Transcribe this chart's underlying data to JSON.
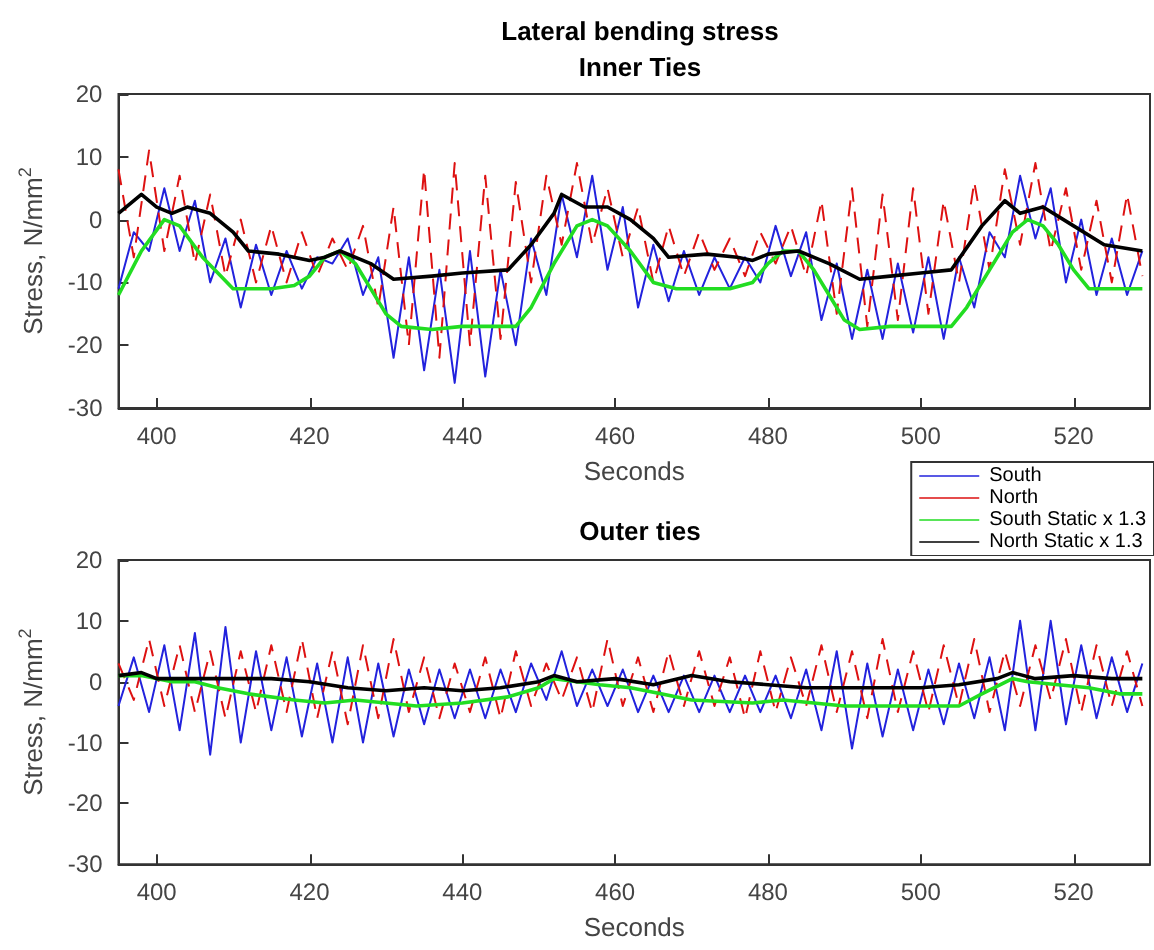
{
  "chart_data": [
    {
      "type": "line",
      "title": "Lateral bending stress",
      "subtitle": "Inner Ties",
      "xlabel": "Seconds",
      "ylabel": "Stress, N/mm$^{2}$",
      "xlim": [
        395,
        530
      ],
      "xticks": [
        400,
        420,
        440,
        460,
        480,
        500,
        520
      ],
      "ylim": [
        -30,
        20
      ],
      "yticks": [
        -30,
        -20,
        -10,
        0,
        10,
        20
      ],
      "legend": "bottom right",
      "marker": "none",
      "x": [
        395,
        397,
        399,
        401,
        403,
        405,
        407,
        409,
        411,
        413,
        415,
        417,
        419,
        421,
        423,
        425,
        427,
        429,
        431,
        433,
        435,
        437,
        439,
        441,
        443,
        445,
        447,
        449,
        451,
        453,
        455,
        457,
        459,
        461,
        463,
        465,
        467,
        469,
        471,
        473,
        475,
        477,
        479,
        481,
        483,
        485,
        487,
        489,
        491,
        493,
        495,
        497,
        499,
        501,
        503,
        505,
        507,
        509,
        511,
        513,
        515,
        517,
        519,
        521,
        523,
        525,
        527,
        529
      ],
      "series": [
        {
          "name": "South",
          "color": "#2222dd",
          "line_style": "solid",
          "values": [
            -11,
            -2,
            -5,
            5,
            -5,
            3,
            -10,
            -3,
            -14,
            -4,
            -12,
            -5,
            -11,
            -6,
            -7,
            -3,
            -12,
            -6,
            -22,
            -6,
            -24,
            -8,
            -26,
            -5,
            -25,
            -8,
            -20,
            -3,
            -12,
            4,
            -6,
            7,
            -8,
            2,
            -14,
            -4,
            -13,
            -5,
            -12,
            -6,
            -11,
            -6,
            -10,
            -1,
            -9,
            -2,
            -16,
            -7,
            -19,
            -8,
            -19,
            -7,
            -18,
            -6,
            -19,
            -6,
            -14,
            -2,
            -6,
            7,
            -3,
            5,
            -10,
            0,
            -12,
            -3,
            -12,
            -5
          ]
        },
        {
          "name": "North",
          "color": "#dd1111",
          "line_style": "dashed",
          "values": [
            8,
            -6,
            11,
            -5,
            7,
            -7,
            4,
            -9,
            0,
            -10,
            -1,
            -10,
            -2,
            -9,
            -3,
            -8,
            -1,
            -14,
            2,
            -20,
            8,
            -22,
            9,
            -20,
            7,
            -19,
            6,
            -10,
            7,
            -4,
            9,
            -4,
            5,
            -6,
            2,
            -10,
            -1,
            -9,
            -2,
            -8,
            -3,
            -9,
            -2,
            -7,
            -1,
            -9,
            3,
            -15,
            5,
            -17,
            4,
            -16,
            5,
            -15,
            3,
            -10,
            6,
            -8,
            8,
            -4,
            9,
            -5,
            5,
            -8,
            3,
            -10,
            4,
            -9
          ]
        },
        {
          "name": "South Static x 1.3",
          "color": "#22dd22",
          "line_style": "solid",
          "x": [
            395,
            398,
            401,
            403,
            406,
            410,
            415,
            418,
            420,
            422,
            424,
            426,
            428,
            430,
            432,
            436,
            440,
            444,
            447,
            449,
            452,
            455,
            457,
            459,
            462,
            465,
            468,
            475,
            478,
            480,
            482,
            484,
            486,
            488,
            490,
            492,
            496,
            500,
            504,
            506,
            509,
            512,
            514,
            516,
            518,
            520,
            522,
            525,
            529
          ],
          "values": [
            -12,
            -5,
            0,
            -1,
            -6,
            -11,
            -11,
            -10.5,
            -9,
            -6,
            -5,
            -7,
            -11,
            -15,
            -17,
            -17.5,
            -17,
            -17,
            -17,
            -14,
            -7,
            -1,
            0,
            -1,
            -5,
            -10,
            -11,
            -11,
            -10,
            -7,
            -5,
            -5,
            -8,
            -12,
            -16,
            -17.5,
            -17,
            -17,
            -17,
            -14,
            -8,
            -2,
            0,
            -1,
            -4,
            -8,
            -11,
            -11,
            -11
          ]
        },
        {
          "name": "North Static x 1.3",
          "color": "#000000",
          "line_style": "solid",
          "x": [
            395,
            398,
            400,
            402,
            404,
            407,
            410,
            412,
            416,
            420,
            422,
            424,
            428,
            431,
            436,
            440,
            446,
            449,
            452,
            453,
            456,
            459,
            462,
            465,
            467,
            472,
            476,
            478,
            480,
            484,
            488,
            492,
            496,
            500,
            504,
            508,
            511,
            513,
            516,
            520,
            524,
            529
          ],
          "values": [
            1,
            4,
            2,
            1,
            2,
            1,
            -2,
            -5,
            -5.5,
            -6.5,
            -6,
            -5,
            -7,
            -9.5,
            -9,
            -8.5,
            -8,
            -4,
            1,
            4,
            2,
            2,
            0,
            -3,
            -6,
            -5.5,
            -6,
            -6.5,
            -5.5,
            -5,
            -7,
            -9.5,
            -9,
            -8.5,
            -8,
            -1,
            3,
            1,
            2,
            -1,
            -4,
            -5
          ]
        }
      ]
    },
    {
      "type": "line",
      "title": "Outer ties",
      "xlabel": "Seconds",
      "ylabel": "Stress, N/mm$^{2}$",
      "xlim": [
        395,
        530
      ],
      "xticks": [
        400,
        420,
        440,
        460,
        480,
        500,
        520
      ],
      "ylim": [
        -30,
        20
      ],
      "yticks": [
        -30,
        -20,
        -10,
        0,
        10,
        20
      ],
      "marker": "none",
      "x": [
        395,
        397,
        399,
        401,
        403,
        405,
        407,
        409,
        411,
        413,
        415,
        417,
        419,
        421,
        423,
        425,
        427,
        429,
        431,
        433,
        435,
        437,
        439,
        441,
        443,
        445,
        447,
        449,
        451,
        453,
        455,
        457,
        459,
        461,
        463,
        465,
        467,
        469,
        471,
        473,
        475,
        477,
        479,
        481,
        483,
        485,
        487,
        489,
        491,
        493,
        495,
        497,
        499,
        501,
        503,
        505,
        507,
        509,
        511,
        513,
        515,
        517,
        519,
        521,
        523,
        525,
        527,
        529
      ],
      "series": [
        {
          "color": "#2222dd",
          "line_style": "solid",
          "values": [
            -4,
            4,
            -5,
            6,
            -8,
            8,
            -12,
            9,
            -10,
            5,
            -8,
            4,
            -9,
            3,
            -10,
            4,
            -10,
            3,
            -9,
            2,
            -7,
            2,
            -6,
            2,
            -6,
            2,
            -5,
            3,
            -3,
            5,
            -4,
            2,
            -4,
            2,
            -5,
            1,
            -5,
            1,
            -5,
            1,
            -5,
            1,
            -5,
            1,
            -6,
            2,
            -8,
            5,
            -11,
            3,
            -9,
            2,
            -8,
            2,
            -7,
            3,
            -6,
            4,
            -8,
            10,
            -8,
            10,
            -7,
            6,
            -6,
            4,
            -5,
            3
          ]
        },
        {
          "color": "#dd1111",
          "line_style": "dashed",
          "values": [
            3,
            -3,
            7,
            -4,
            6,
            -5,
            5,
            -6,
            5,
            -5,
            6,
            -5,
            7,
            -6,
            5,
            -7,
            6,
            -6,
            7,
            -5,
            4,
            -6,
            3,
            -5,
            4,
            -6,
            5,
            -4,
            3,
            -3,
            4,
            -5,
            7,
            -4,
            4,
            -5,
            5,
            -4,
            5,
            -4,
            4,
            -6,
            5,
            -5,
            4,
            -4,
            6,
            -5,
            5,
            -6,
            7,
            -5,
            5,
            -5,
            6,
            -4,
            7,
            -5,
            5,
            -4,
            6,
            -3,
            7,
            -5,
            6,
            -4,
            5,
            -4
          ]
        },
        {
          "color": "#22dd22",
          "line_style": "solid",
          "x": [
            395,
            398,
            402,
            405,
            408,
            412,
            418,
            422,
            426,
            430,
            434,
            440,
            446,
            450,
            452,
            455,
            458,
            462,
            466,
            470,
            478,
            482,
            486,
            490,
            500,
            505,
            508,
            512,
            514,
            518,
            522,
            526,
            529
          ],
          "values": [
            1,
            1,
            0,
            0,
            -1,
            -2,
            -3,
            -3.5,
            -3,
            -3.5,
            -4,
            -3.5,
            -2.5,
            -1,
            0.5,
            0,
            -0.5,
            -1,
            -2,
            -3,
            -3.5,
            -3,
            -3.5,
            -4,
            -4,
            -4,
            -2,
            0.5,
            0,
            -0.5,
            -1,
            -2,
            -2
          ]
        },
        {
          "color": "#000000",
          "line_style": "solid",
          "x": [
            395,
            398,
            400,
            405,
            410,
            415,
            420,
            425,
            430,
            435,
            440,
            445,
            450,
            452,
            455,
            460,
            465,
            470,
            475,
            480,
            485,
            490,
            495,
            500,
            505,
            510,
            512,
            515,
            520,
            525,
            529
          ],
          "values": [
            1,
            1.5,
            0.5,
            0.5,
            0.5,
            0.5,
            0,
            -1,
            -1.5,
            -1,
            -1.5,
            -1,
            0,
            1,
            0,
            0.5,
            -0.5,
            1,
            0,
            -0.5,
            -1,
            -1,
            -1,
            -1,
            -0.5,
            0.5,
            1.5,
            0.5,
            1,
            0.5,
            0.5
          ]
        }
      ]
    }
  ]
}
